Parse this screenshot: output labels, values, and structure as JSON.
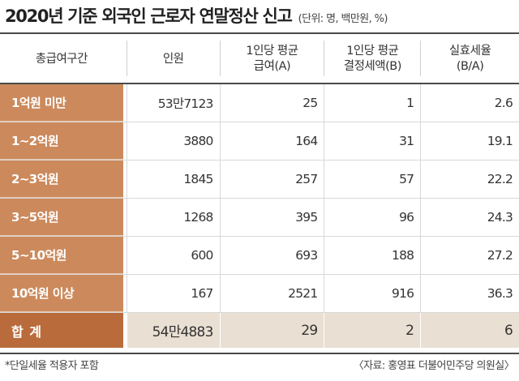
{
  "title": "2020년 기준 외국인 근로자 연말정산 신고",
  "unit": "(단위: 명, 백만원, %)",
  "columns": [
    {
      "line1": "총급여구간",
      "line2": ""
    },
    {
      "line1": "인원",
      "line2": ""
    },
    {
      "line1": "1인당 평균",
      "line2": "급여(A)"
    },
    {
      "line1": "1인당 평균",
      "line2": "결정세액(B)"
    },
    {
      "line1": "실효세율",
      "line2": "(B/A)"
    }
  ],
  "rows": [
    {
      "label": "1억원 미만",
      "people": "53만7123",
      "avg_pay": "25",
      "avg_tax": "1",
      "rate": "2.6"
    },
    {
      "label": "1∼2억원",
      "people": "3880",
      "avg_pay": "164",
      "avg_tax": "31",
      "rate": "19.1"
    },
    {
      "label": "2∼3억원",
      "people": "1845",
      "avg_pay": "257",
      "avg_tax": "57",
      "rate": "22.2"
    },
    {
      "label": "3∼5억원",
      "people": "1268",
      "avg_pay": "395",
      "avg_tax": "96",
      "rate": "24.3"
    },
    {
      "label": "5∼10억원",
      "people": "600",
      "avg_pay": "693",
      "avg_tax": "188",
      "rate": "27.2"
    },
    {
      "label": "10억원 이상",
      "people": "167",
      "avg_pay": "2521",
      "avg_tax": "916",
      "rate": "36.3"
    }
  ],
  "total": {
    "label": "합 계",
    "people": "54만4883",
    "avg_pay": "29",
    "avg_tax": "2",
    "rate": "6"
  },
  "footnote": "*단일세율 적용자 포함",
  "source": "〈자료: 홍영표 더불어민주당 의원실〉",
  "colors": {
    "row_label_bg": "#cc8a5c",
    "total_label_bg": "#b96b3c",
    "total_row_bg": "#e9dfd3"
  }
}
